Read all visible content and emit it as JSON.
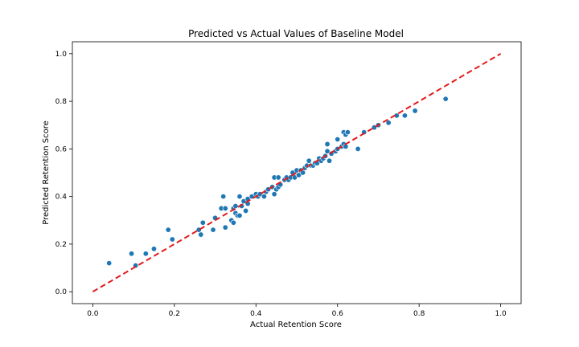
{
  "chart_data": {
    "type": "scatter",
    "title": "Predicted vs Actual Values of Baseline Model",
    "xlabel": "Actual Retention Score",
    "ylabel": "Predicted Retention Score",
    "xlim": [
      -0.05,
      1.05
    ],
    "ylim": [
      -0.05,
      1.05
    ],
    "xticks": [
      "0.0",
      "0.2",
      "0.4",
      "0.6",
      "0.8",
      "1.0"
    ],
    "yticks": [
      "0.0",
      "0.2",
      "0.4",
      "0.6",
      "0.8",
      "1.0"
    ],
    "grid": false,
    "point_color": "#1f77b4",
    "reference_line": {
      "from": [
        0,
        0
      ],
      "to": [
        1,
        1
      ],
      "color": "#e41a1c",
      "style": "dashed"
    },
    "points": [
      [
        0.04,
        0.12
      ],
      [
        0.095,
        0.16
      ],
      [
        0.105,
        0.11
      ],
      [
        0.13,
        0.16
      ],
      [
        0.15,
        0.18
      ],
      [
        0.185,
        0.26
      ],
      [
        0.195,
        0.22
      ],
      [
        0.26,
        0.26
      ],
      [
        0.265,
        0.24
      ],
      [
        0.27,
        0.29
      ],
      [
        0.295,
        0.26
      ],
      [
        0.3,
        0.31
      ],
      [
        0.315,
        0.35
      ],
      [
        0.32,
        0.4
      ],
      [
        0.325,
        0.35
      ],
      [
        0.325,
        0.27
      ],
      [
        0.34,
        0.3
      ],
      [
        0.345,
        0.35
      ],
      [
        0.345,
        0.29
      ],
      [
        0.35,
        0.36
      ],
      [
        0.35,
        0.33
      ],
      [
        0.355,
        0.32
      ],
      [
        0.36,
        0.4
      ],
      [
        0.36,
        0.32
      ],
      [
        0.365,
        0.36
      ],
      [
        0.37,
        0.38
      ],
      [
        0.375,
        0.34
      ],
      [
        0.38,
        0.39
      ],
      [
        0.38,
        0.37
      ],
      [
        0.39,
        0.4
      ],
      [
        0.4,
        0.41
      ],
      [
        0.405,
        0.4
      ],
      [
        0.41,
        0.41
      ],
      [
        0.42,
        0.4
      ],
      [
        0.425,
        0.42
      ],
      [
        0.43,
        0.43
      ],
      [
        0.44,
        0.44
      ],
      [
        0.445,
        0.41
      ],
      [
        0.445,
        0.48
      ],
      [
        0.45,
        0.43
      ],
      [
        0.455,
        0.44
      ],
      [
        0.455,
        0.48
      ],
      [
        0.46,
        0.45
      ],
      [
        0.47,
        0.47
      ],
      [
        0.475,
        0.48
      ],
      [
        0.48,
        0.47
      ],
      [
        0.485,
        0.48
      ],
      [
        0.49,
        0.5
      ],
      [
        0.495,
        0.48
      ],
      [
        0.5,
        0.51
      ],
      [
        0.505,
        0.49
      ],
      [
        0.51,
        0.51
      ],
      [
        0.515,
        0.5
      ],
      [
        0.52,
        0.52
      ],
      [
        0.525,
        0.53
      ],
      [
        0.53,
        0.55
      ],
      [
        0.535,
        0.53
      ],
      [
        0.54,
        0.53
      ],
      [
        0.545,
        0.54
      ],
      [
        0.55,
        0.54
      ],
      [
        0.555,
        0.56
      ],
      [
        0.56,
        0.55
      ],
      [
        0.565,
        0.56
      ],
      [
        0.57,
        0.57
      ],
      [
        0.575,
        0.59
      ],
      [
        0.575,
        0.62
      ],
      [
        0.58,
        0.55
      ],
      [
        0.585,
        0.58
      ],
      [
        0.595,
        0.59
      ],
      [
        0.6,
        0.6
      ],
      [
        0.6,
        0.64
      ],
      [
        0.61,
        0.61
      ],
      [
        0.615,
        0.62
      ],
      [
        0.615,
        0.67
      ],
      [
        0.62,
        0.66
      ],
      [
        0.62,
        0.61
      ],
      [
        0.625,
        0.67
      ],
      [
        0.65,
        0.6
      ],
      [
        0.665,
        0.67
      ],
      [
        0.69,
        0.69
      ],
      [
        0.7,
        0.7
      ],
      [
        0.725,
        0.71
      ],
      [
        0.745,
        0.74
      ],
      [
        0.765,
        0.74
      ],
      [
        0.79,
        0.76
      ],
      [
        0.865,
        0.81
      ]
    ]
  }
}
